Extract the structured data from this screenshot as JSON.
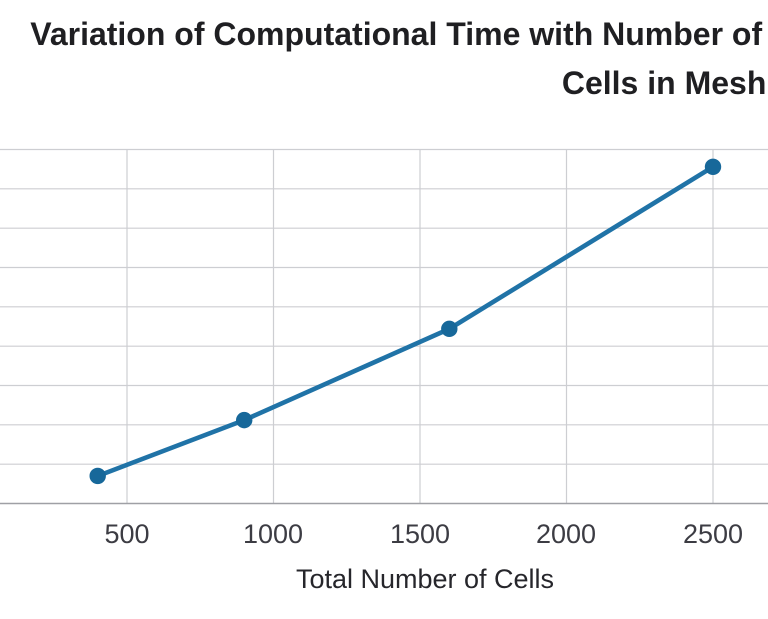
{
  "title": {
    "line1": "Variation of Computational Time with Number of",
    "line2": "Cells in Mesh",
    "full": "Variation of Computational Time with Number of Cells in Mesh",
    "note": "first line is clipped at both left and right image edges (visible text reads 'ariation of Computational Time with Number o')"
  },
  "x_axis": {
    "label": "Total Number of Cells",
    "ticks": [
      "500",
      "1000",
      "1500",
      "2000",
      "2500"
    ]
  },
  "chart_data": {
    "type": "line",
    "title": "Variation of Computational Time with Number of Cells in Mesh",
    "xlabel": "Total Number of Cells",
    "ylabel": "",
    "x": [
      400,
      900,
      1600,
      2500
    ],
    "y_gridline_units": [
      0.7,
      2.12,
      4.44,
      8.56
    ],
    "y_note": "y-axis tick labels are cropped outside the frame; y values estimated in horizontal-gridline intervals above the x-axis (9 intervals visible in plot area)",
    "x_tick_values": [
      500,
      1000,
      1500,
      2000,
      2500
    ],
    "xlim_visible": [
      65,
      2690
    ],
    "grid": true,
    "legend": false,
    "marker": "circle",
    "line_color": "#2073a7",
    "marker_color": "#17689a",
    "gridline_color": "#cdced2",
    "axis_line_color": "#9fa0a5"
  }
}
